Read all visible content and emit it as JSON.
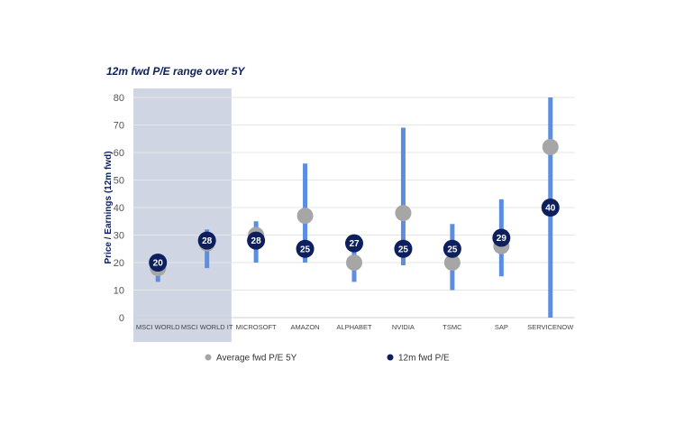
{
  "chart_data": {
    "type": "range-dot",
    "title": "12m fwd P/E range over 5Y",
    "ylabel": "Price / Earnings (12m fwd)",
    "ylim": [
      0,
      80
    ],
    "yticks": [
      0,
      10,
      20,
      30,
      40,
      50,
      60,
      70,
      80
    ],
    "grid": true,
    "legend_position": "bottom",
    "highlighted_categories": [
      "MSCI WORLD",
      "MSCI WORLD IT"
    ],
    "categories": [
      "MSCI WORLD",
      "MSCI WORLD IT",
      "MICROSOFT",
      "AMAZON",
      "ALPHABET",
      "NVIDIA",
      "TSMC",
      "SAP",
      "SERVICENOW"
    ],
    "range_low": [
      13,
      18,
      20,
      20,
      13,
      19,
      10,
      15,
      null
    ],
    "range_high": [
      21,
      32,
      35,
      56,
      28,
      69,
      34,
      43,
      80
    ],
    "series": [
      {
        "name": "Average fwd P/E 5Y",
        "color": "#a6a6a6",
        "values": [
          18,
          27,
          30,
          37,
          20,
          38,
          20,
          26,
          62
        ]
      },
      {
        "name": "12m fwd P/E",
        "color": "#0d1f5c",
        "values": [
          20,
          28,
          28,
          25,
          27,
          25,
          25,
          29,
          40
        ]
      }
    ],
    "colors": {
      "range_bar": "#5b8de0",
      "highlight_band": "#d0d5e3",
      "grid": "#e6e6e6"
    }
  }
}
